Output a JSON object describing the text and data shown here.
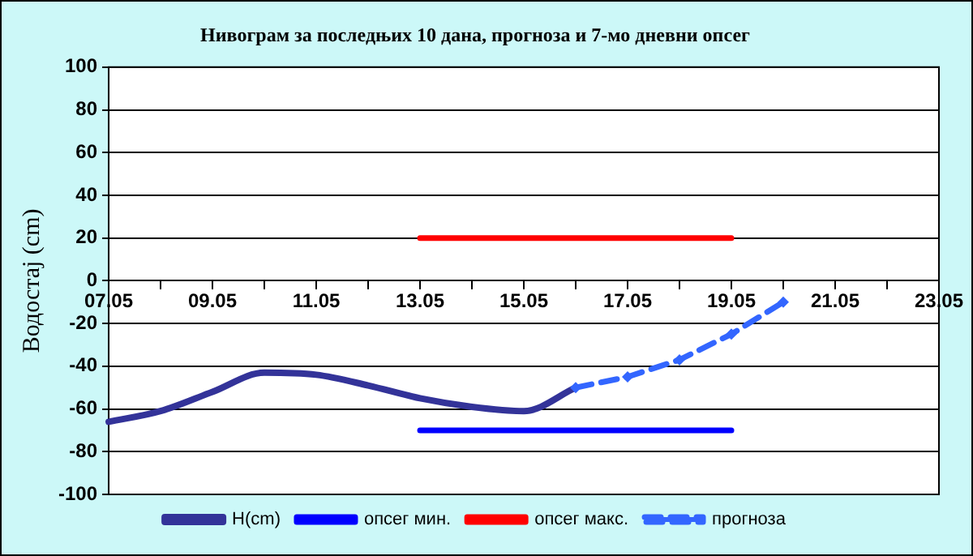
{
  "chart_data": {
    "type": "line",
    "title": "Нивограм за последњих 10 дана, прогноза и 7-мо дневни опсег",
    "ylabel": "Водостај (cm)",
    "categories": [
      "07.05",
      null,
      "09.05",
      null,
      "11.05",
      null,
      "13.05",
      null,
      "15.05",
      null,
      "17.05",
      null,
      "19.05",
      null,
      "21.05",
      null,
      "23.05"
    ],
    "series": [
      {
        "name": "H(cm)",
        "color": "#333399",
        "values": [
          -66,
          -61,
          -52,
          -43,
          -44,
          -49,
          -55,
          -59,
          -61,
          -50,
          null,
          null,
          null,
          null,
          null,
          null,
          null
        ]
      },
      {
        "name": "опсег мин.",
        "color": "#0000ff",
        "values": [
          null,
          null,
          null,
          null,
          null,
          null,
          -70,
          -70,
          -70,
          -70,
          -70,
          -70,
          -70,
          null,
          null,
          null,
          null
        ]
      },
      {
        "name": "опсег макс.",
        "color": "#ff0000",
        "values": [
          null,
          null,
          null,
          null,
          null,
          null,
          20,
          20,
          20,
          20,
          20,
          20,
          20,
          null,
          null,
          null,
          null
        ]
      },
      {
        "name": "прогноза",
        "color": "#3366ff",
        "marker": "diamond",
        "line_style": "dashed",
        "values": [
          null,
          null,
          null,
          null,
          null,
          null,
          null,
          null,
          null,
          -50,
          -45,
          -37,
          -25,
          -10,
          null,
          null,
          null
        ]
      }
    ],
    "ylim": [
      -100,
      100
    ],
    "yticks": [
      -100,
      -80,
      -60,
      -40,
      -20,
      0,
      20,
      40,
      60,
      80,
      100
    ],
    "grid": "y",
    "legend": "bottom",
    "marker": "none",
    "line_style": "solid"
  }
}
